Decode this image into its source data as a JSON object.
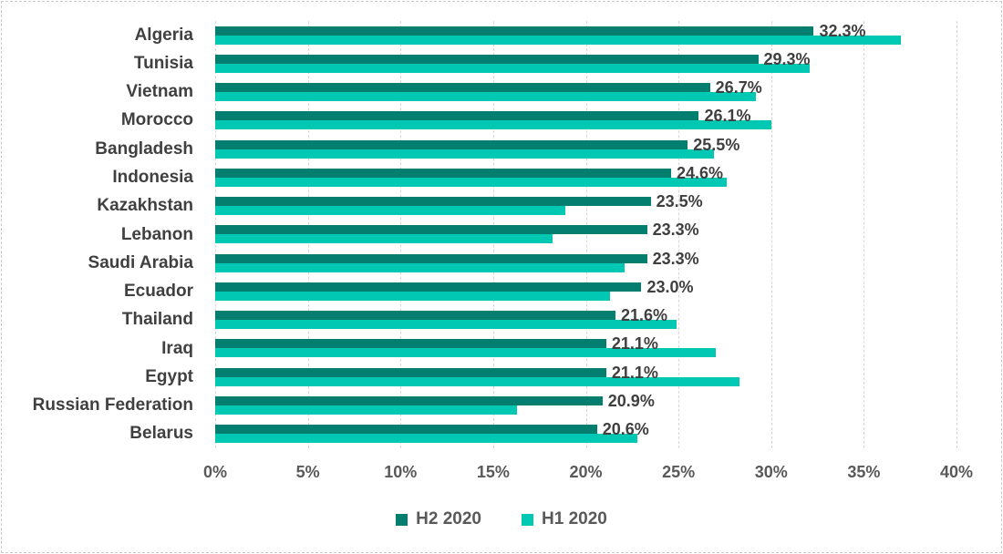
{
  "chart_data": {
    "type": "bar",
    "orientation": "horizontal",
    "title": "",
    "categories": [
      "Algeria",
      "Tunisia",
      "Vietnam",
      "Morocco",
      "Bangladesh",
      "Indonesia",
      "Kazakhstan",
      "Lebanon",
      "Saudi Arabia",
      "Ecuador",
      "Thailand",
      "Iraq",
      "Egypt",
      "Russian Federation",
      "Belarus"
    ],
    "series": [
      {
        "name": "H2 2020",
        "color": "#047E6E",
        "values": [
          32.3,
          29.3,
          26.7,
          26.1,
          25.5,
          24.6,
          23.5,
          23.3,
          23.3,
          23.0,
          21.6,
          21.1,
          21.1,
          20.9,
          20.6
        ],
        "data_labels": [
          "32.3%",
          "29.3%",
          "26.7%",
          "26.1%",
          "25.5%",
          "24.6%",
          "23.5%",
          "23.3%",
          "23.3%",
          "23.0%",
          "21.6%",
          "21.1%",
          "21.1%",
          "20.9%",
          "20.6%"
        ]
      },
      {
        "name": "H1 2020",
        "color": "#00C8B3",
        "values": [
          37.0,
          32.1,
          29.2,
          30.0,
          26.9,
          27.6,
          18.9,
          18.2,
          22.1,
          21.3,
          24.9,
          27.0,
          28.3,
          16.3,
          22.8
        ],
        "data_labels": null
      }
    ],
    "xlim": [
      0,
      40
    ],
    "x_tick_step": 5,
    "x_tick_labels": [
      "0%",
      "5%",
      "10%",
      "15%",
      "20%",
      "25%",
      "30%",
      "35%",
      "40%"
    ],
    "grid": "vertical-dashed",
    "gridline_color": "#d6d6d6",
    "legend_position": "bottom"
  },
  "legend": {
    "items": [
      {
        "label": "H2 2020",
        "color": "#047E6E"
      },
      {
        "label": "H1 2020",
        "color": "#00C8B3"
      }
    ]
  },
  "text_colors": {
    "category_label": "#404040",
    "data_label": "#3f3f3f",
    "axis_label": "#595959"
  }
}
